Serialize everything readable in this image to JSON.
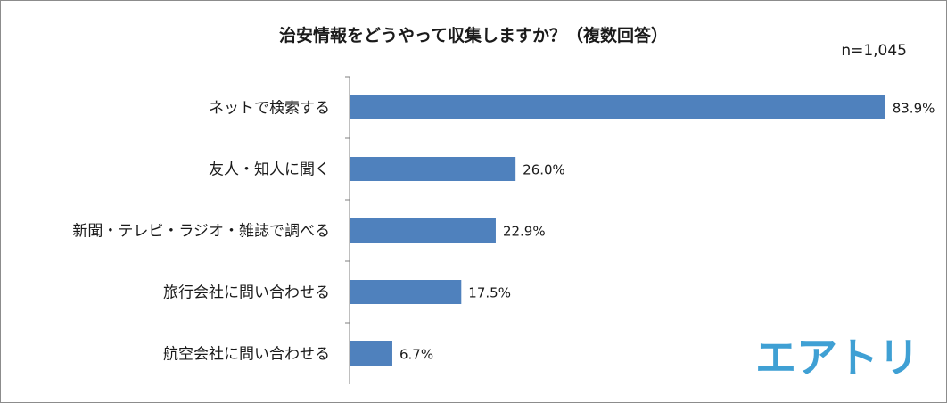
{
  "title": "治安情報をどうやって収集しますか？（複数回答）",
  "sample_size": "n=1,045",
  "logo_text": "エアトリ",
  "colors": {
    "bar": "#4f81bd",
    "logo": "#3fa0d4",
    "axis": "#7f7f7f"
  },
  "chart_data": {
    "type": "bar",
    "orientation": "horizontal",
    "title": "治安情報をどうやって収集しますか？（複数回答）",
    "categories": [
      "ネットで検索する",
      "友人・知人に聞く",
      "新聞・テレビ・ラジオ・雑誌で調べる",
      "旅行会社に問い合わせる",
      "航空会社に問い合わせる"
    ],
    "values": [
      83.9,
      26.0,
      22.9,
      17.5,
      6.7
    ],
    "value_labels": [
      "83.9%",
      "26.0%",
      "22.9%",
      "17.5%",
      "6.7%"
    ],
    "xlim": [
      0,
      100
    ],
    "unit": "%",
    "grid": false,
    "legend": "none"
  }
}
